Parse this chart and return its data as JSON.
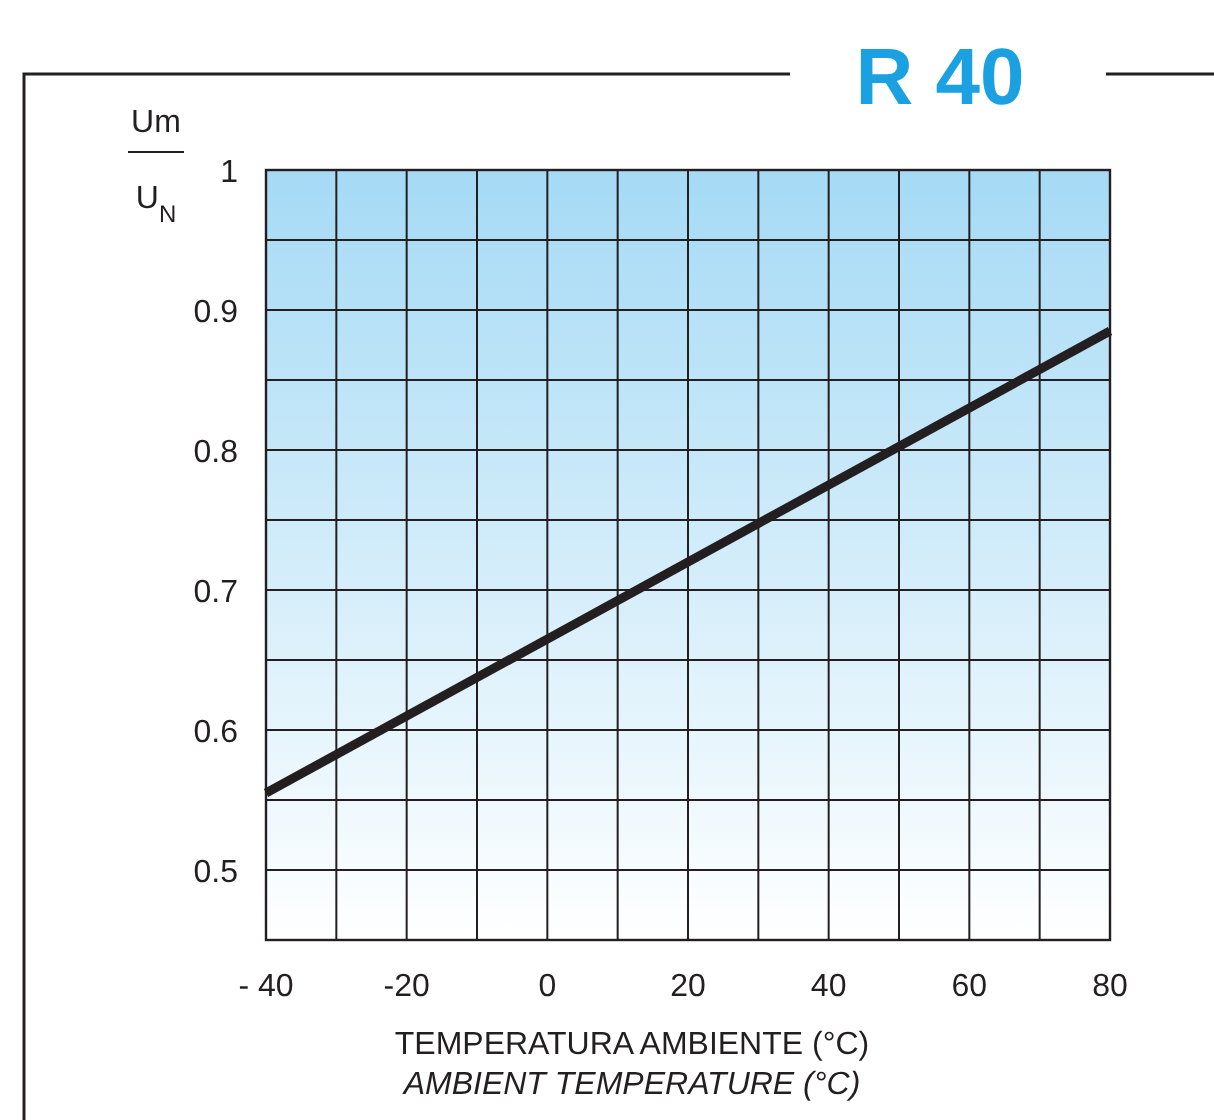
{
  "chart_data": {
    "type": "line",
    "title": "R 40",
    "ylabel": "Um\nU$_{N}$",
    "xlabel": "TEMPERATURA AMBIENTE (°C)\nAMBIENT TEMPERATURE (°C)",
    "x": [
      -40,
      80
    ],
    "series": [
      {
        "color": "#231f20",
        "values": [
          0.555,
          0.885
        ]
      }
    ],
    "xlim": [
      -40,
      80
    ],
    "xticks": [
      {
        "value": -40,
        "label": "- 40"
      },
      {
        "value": -30,
        "label": null
      },
      -20,
      {
        "value": -10,
        "label": null
      },
      0,
      {
        "value": 10,
        "label": null
      },
      20,
      {
        "value": 30,
        "label": null
      },
      40,
      {
        "value": 50,
        "label": null
      },
      60,
      {
        "value": 70,
        "label": null
      },
      80
    ],
    "ylim": [
      0.45,
      1
    ],
    "yticks": [
      {
        "value": 0.5,
        "label": "0.5"
      },
      {
        "value": 0.55,
        "label": null
      },
      {
        "value": 0.6,
        "label": "0.6"
      },
      {
        "value": 0.65,
        "label": null
      },
      {
        "value": 0.7,
        "label": "0.7"
      },
      {
        "value": 0.75,
        "label": null
      },
      {
        "value": 0.8,
        "label": "0.8"
      },
      {
        "value": 0.85,
        "label": null
      },
      {
        "value": 0.9,
        "label": "0.9"
      },
      {
        "value": 0.95,
        "label": null
      },
      1
    ],
    "grid": true,
    "marker": "none",
    "line_style": "solid"
  }
}
